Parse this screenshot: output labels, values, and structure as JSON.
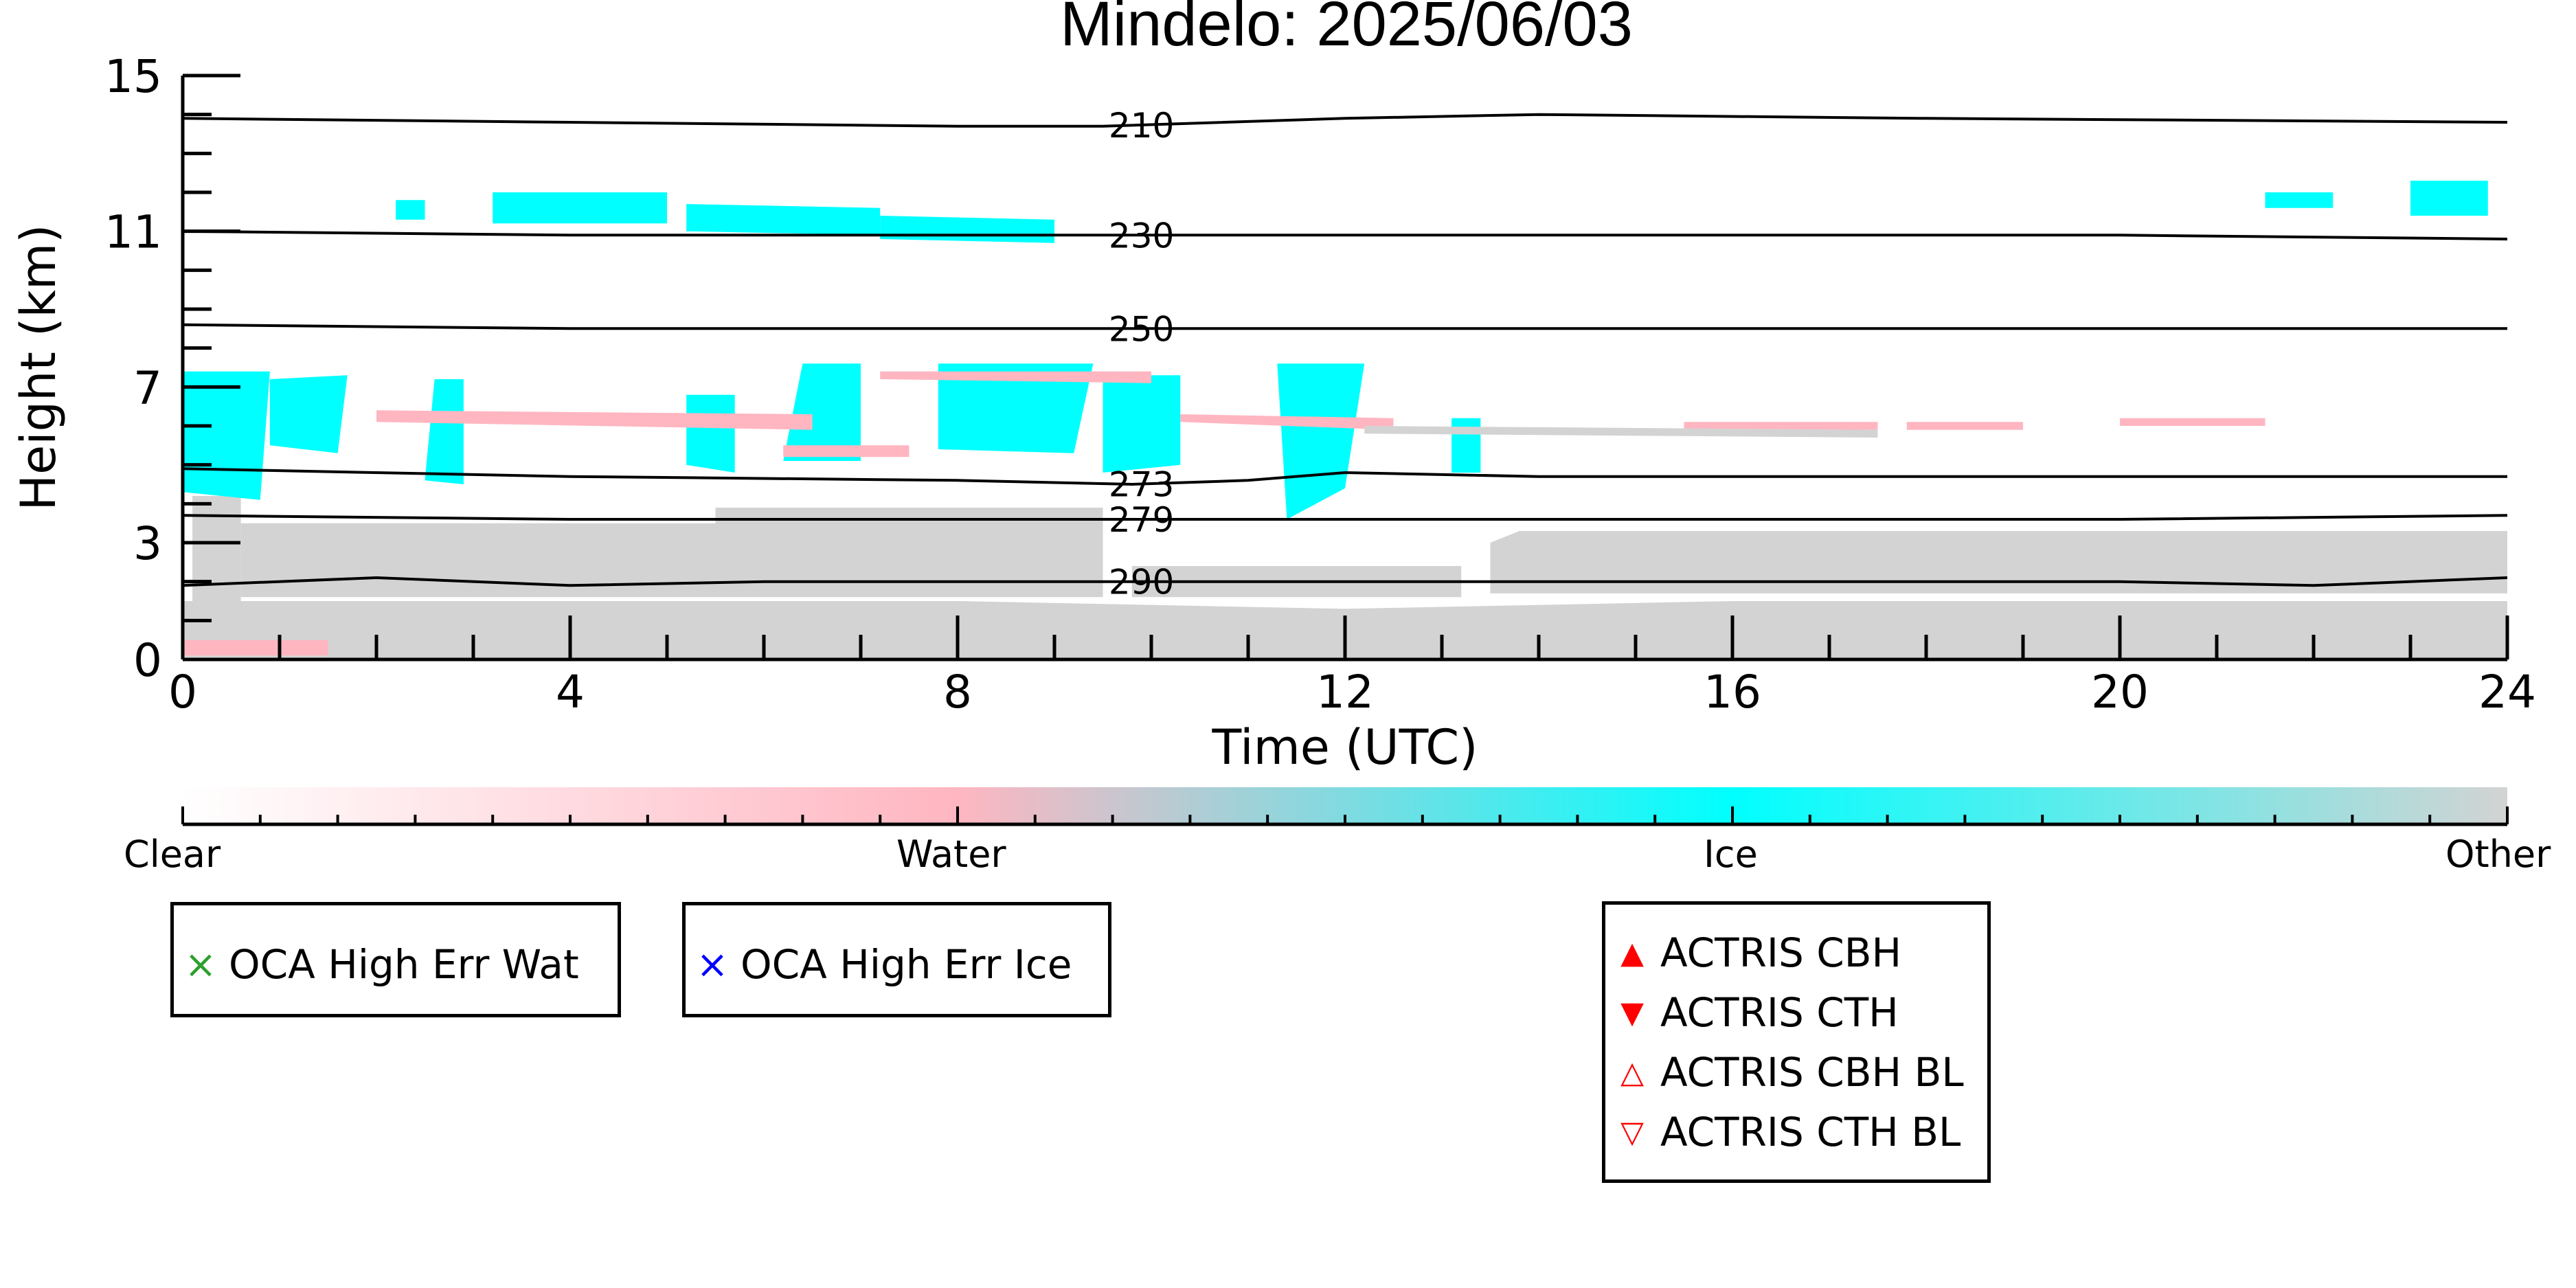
{
  "chart_data": {
    "type": "heatmap",
    "title": "Mindelo: 2025/06/03",
    "xlabel": "Time (UTC)",
    "ylabel": "Height (km)",
    "xlim": [
      0,
      24
    ],
    "ylim": [
      0,
      15
    ],
    "x_ticks": [
      0,
      4,
      8,
      12,
      16,
      20,
      24
    ],
    "y_ticks": [
      0,
      3,
      7,
      11,
      15
    ],
    "categories": [
      "Clear",
      "Water",
      "Ice",
      "Other"
    ],
    "colors": {
      "Clear": "#ffffff",
      "Water": "#ffb6c1",
      "Ice": "#00ffff",
      "Other": "#d3d3d3"
    },
    "temperature_contours": [
      {
        "label": "210",
        "points": [
          [
            0,
            13.9
          ],
          [
            4,
            13.8
          ],
          [
            8,
            13.7
          ],
          [
            9.5,
            13.7
          ],
          [
            12,
            13.9
          ],
          [
            14,
            14.0
          ],
          [
            18,
            13.9
          ],
          [
            24,
            13.8
          ]
        ]
      },
      {
        "label": "230",
        "points": [
          [
            0,
            11.0
          ],
          [
            4,
            10.9
          ],
          [
            8,
            10.9
          ],
          [
            12,
            10.9
          ],
          [
            16,
            10.9
          ],
          [
            20,
            10.9
          ],
          [
            24,
            10.8
          ]
        ]
      },
      {
        "label": "250",
        "points": [
          [
            0,
            8.6
          ],
          [
            4,
            8.5
          ],
          [
            8,
            8.5
          ],
          [
            12,
            8.5
          ],
          [
            16,
            8.5
          ],
          [
            20,
            8.5
          ],
          [
            24,
            8.5
          ]
        ]
      },
      {
        "label": "273",
        "points": [
          [
            0,
            4.9
          ],
          [
            4,
            4.7
          ],
          [
            8,
            4.6
          ],
          [
            9.8,
            4.5
          ],
          [
            11,
            4.6
          ],
          [
            12,
            4.8
          ],
          [
            14,
            4.7
          ],
          [
            18,
            4.7
          ],
          [
            24,
            4.7
          ]
        ]
      },
      {
        "label": "279",
        "points": [
          [
            0,
            3.7
          ],
          [
            4,
            3.6
          ],
          [
            8,
            3.6
          ],
          [
            12,
            3.6
          ],
          [
            16,
            3.6
          ],
          [
            20,
            3.6
          ],
          [
            24,
            3.7
          ]
        ]
      },
      {
        "label": "290",
        "points": [
          [
            0,
            1.9
          ],
          [
            2,
            2.1
          ],
          [
            4,
            1.9
          ],
          [
            6,
            2.0
          ],
          [
            8,
            2.0
          ],
          [
            12,
            2.0
          ],
          [
            16,
            2.0
          ],
          [
            20,
            2.0
          ],
          [
            22,
            1.9
          ],
          [
            24,
            2.1
          ]
        ]
      }
    ],
    "regions": [
      {
        "class": "Other",
        "polygon": [
          [
            0,
            0
          ],
          [
            24,
            0
          ],
          [
            24,
            1.5
          ],
          [
            20,
            1.5
          ],
          [
            16,
            1.5
          ],
          [
            12,
            1.3
          ],
          [
            8,
            1.5
          ],
          [
            4,
            1.5
          ],
          [
            0,
            1.5
          ]
        ]
      },
      {
        "class": "Other",
        "polygon": [
          [
            0.6,
            1.6
          ],
          [
            9.5,
            1.6
          ],
          [
            9.5,
            3.9
          ],
          [
            5.5,
            3.9
          ],
          [
            5.5,
            3.5
          ],
          [
            0.6,
            3.5
          ]
        ]
      },
      {
        "class": "Other",
        "polygon": [
          [
            9.8,
            1.6
          ],
          [
            13.2,
            1.6
          ],
          [
            13.2,
            2.4
          ],
          [
            9.8,
            2.4
          ]
        ]
      },
      {
        "class": "Other",
        "polygon": [
          [
            13.5,
            1.7
          ],
          [
            24,
            1.7
          ],
          [
            24,
            3.3
          ],
          [
            13.8,
            3.3
          ],
          [
            13.5,
            3.0
          ]
        ]
      },
      {
        "class": "Other",
        "polygon": [
          [
            0.1,
            1.0
          ],
          [
            0.6,
            1.0
          ],
          [
            0.6,
            4.2
          ],
          [
            0.1,
            4.2
          ]
        ]
      },
      {
        "class": "Ice",
        "polygon": [
          [
            0,
            4.3
          ],
          [
            0.8,
            4.1
          ],
          [
            0.9,
            7.4
          ],
          [
            0,
            7.4
          ]
        ]
      },
      {
        "class": "Ice",
        "polygon": [
          [
            0.9,
            5.5
          ],
          [
            1.6,
            5.3
          ],
          [
            1.7,
            7.3
          ],
          [
            0.9,
            7.2
          ]
        ]
      },
      {
        "class": "Ice",
        "polygon": [
          [
            2.5,
            4.6
          ],
          [
            2.9,
            4.5
          ],
          [
            2.9,
            7.2
          ],
          [
            2.6,
            7.2
          ]
        ]
      },
      {
        "class": "Ice",
        "polygon": [
          [
            5.2,
            5.0
          ],
          [
            5.7,
            4.8
          ],
          [
            5.7,
            6.8
          ],
          [
            5.2,
            6.8
          ]
        ]
      },
      {
        "class": "Ice",
        "polygon": [
          [
            6.2,
            5.1
          ],
          [
            7.0,
            5.1
          ],
          [
            7.0,
            7.6
          ],
          [
            6.4,
            7.6
          ]
        ]
      },
      {
        "class": "Ice",
        "polygon": [
          [
            7.8,
            5.4
          ],
          [
            9.2,
            5.3
          ],
          [
            9.4,
            7.6
          ],
          [
            7.8,
            7.6
          ]
        ]
      },
      {
        "class": "Ice",
        "polygon": [
          [
            9.5,
            4.8
          ],
          [
            10.3,
            5.0
          ],
          [
            10.3,
            7.3
          ],
          [
            9.5,
            7.3
          ]
        ]
      },
      {
        "class": "Ice",
        "polygon": [
          [
            11.4,
            3.6
          ],
          [
            12.0,
            4.4
          ],
          [
            12.2,
            7.6
          ],
          [
            11.3,
            7.6
          ]
        ]
      },
      {
        "class": "Ice",
        "polygon": [
          [
            13.1,
            4.8
          ],
          [
            13.4,
            4.8
          ],
          [
            13.4,
            6.2
          ],
          [
            13.1,
            6.2
          ]
        ]
      },
      {
        "class": "Ice",
        "polygon": [
          [
            2.2,
            11.3
          ],
          [
            2.5,
            11.3
          ],
          [
            2.5,
            11.8
          ],
          [
            2.2,
            11.8
          ]
        ]
      },
      {
        "class": "Ice",
        "polygon": [
          [
            3.2,
            11.2
          ],
          [
            5.0,
            11.2
          ],
          [
            5.0,
            12.0
          ],
          [
            3.2,
            12.0
          ]
        ]
      },
      {
        "class": "Ice",
        "polygon": [
          [
            5.2,
            11.0
          ],
          [
            7.2,
            10.9
          ],
          [
            7.2,
            11.6
          ],
          [
            5.2,
            11.7
          ]
        ]
      },
      {
        "class": "Ice",
        "polygon": [
          [
            7.2,
            10.8
          ],
          [
            9.0,
            10.7
          ],
          [
            9.0,
            11.3
          ],
          [
            7.2,
            11.4
          ]
        ]
      },
      {
        "class": "Ice",
        "polygon": [
          [
            21.5,
            11.6
          ],
          [
            22.2,
            11.6
          ],
          [
            22.2,
            12.0
          ],
          [
            21.5,
            12.0
          ]
        ]
      },
      {
        "class": "Ice",
        "polygon": [
          [
            23.0,
            11.4
          ],
          [
            23.8,
            11.4
          ],
          [
            23.8,
            12.3
          ],
          [
            23.0,
            12.3
          ]
        ]
      },
      {
        "class": "Water",
        "polygon": [
          [
            2.0,
            6.1
          ],
          [
            6.5,
            5.9
          ],
          [
            6.5,
            6.3
          ],
          [
            2.0,
            6.4
          ]
        ]
      },
      {
        "class": "Water",
        "polygon": [
          [
            7.2,
            7.2
          ],
          [
            10.0,
            7.1
          ],
          [
            10.0,
            7.4
          ],
          [
            7.2,
            7.4
          ]
        ]
      },
      {
        "class": "Water",
        "polygon": [
          [
            6.2,
            5.2
          ],
          [
            7.5,
            5.2
          ],
          [
            7.5,
            5.5
          ],
          [
            6.2,
            5.5
          ]
        ]
      },
      {
        "class": "Water",
        "polygon": [
          [
            10.3,
            6.1
          ],
          [
            12.5,
            5.9
          ],
          [
            12.5,
            6.2
          ],
          [
            10.3,
            6.3
          ]
        ]
      },
      {
        "class": "Water",
        "polygon": [
          [
            15.5,
            5.9
          ],
          [
            17.5,
            5.9
          ],
          [
            17.5,
            6.1
          ],
          [
            15.5,
            6.1
          ]
        ]
      },
      {
        "class": "Water",
        "polygon": [
          [
            17.8,
            5.9
          ],
          [
            19.0,
            5.9
          ],
          [
            19.0,
            6.1
          ],
          [
            17.8,
            6.1
          ]
        ]
      },
      {
        "class": "Water",
        "polygon": [
          [
            20.0,
            6.0
          ],
          [
            21.5,
            6.0
          ],
          [
            21.5,
            6.2
          ],
          [
            20.0,
            6.2
          ]
        ]
      },
      {
        "class": "Other",
        "polygon": [
          [
            12.2,
            5.8
          ],
          [
            17.5,
            5.7
          ],
          [
            17.5,
            5.9
          ],
          [
            12.2,
            6.0
          ]
        ]
      },
      {
        "class": "Water",
        "polygon": [
          [
            0.0,
            0.1
          ],
          [
            1.5,
            0.1
          ],
          [
            1.5,
            0.5
          ],
          [
            0.0,
            0.5
          ]
        ]
      }
    ]
  },
  "colorbar": {
    "labels": [
      "Clear",
      "Water",
      "Ice",
      "Other"
    ]
  },
  "legends": {
    "oca_wat": {
      "marker": "×",
      "color": "#2ca02c",
      "label": "OCA High Err Wat"
    },
    "oca_ice": {
      "marker": "×",
      "color": "#0000ff",
      "label": "OCA High Err Ice"
    },
    "actris": [
      {
        "marker": "▲",
        "color": "#ff0000",
        "label": "ACTRIS CBH"
      },
      {
        "marker": "▼",
        "color": "#ff0000",
        "label": "ACTRIS CTH"
      },
      {
        "marker": "△",
        "color": "#ff0000",
        "label": "ACTRIS CBH BL"
      },
      {
        "marker": "▽",
        "color": "#ff0000",
        "label": "ACTRIS CTH BL"
      }
    ]
  }
}
